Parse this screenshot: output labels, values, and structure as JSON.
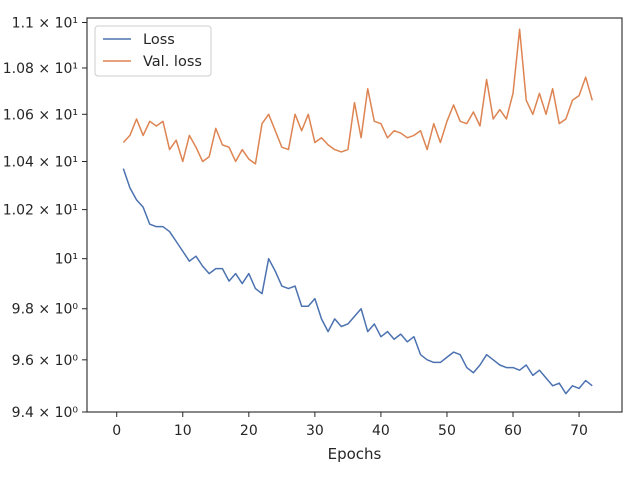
{
  "chart_data": {
    "type": "line",
    "title": "",
    "xlabel": "Epochs",
    "ylabel": "",
    "xlim": [
      -4.5,
      76.5
    ],
    "ylim": [
      9.4,
      11.02
    ],
    "yscale": "log",
    "grid": false,
    "legend_position": "top-left",
    "x_ticks": [
      {
        "value": 0,
        "label": "0"
      },
      {
        "value": 10,
        "label": "10"
      },
      {
        "value": 20,
        "label": "20"
      },
      {
        "value": 30,
        "label": "30"
      },
      {
        "value": 40,
        "label": "40"
      },
      {
        "value": 50,
        "label": "50"
      },
      {
        "value": 60,
        "label": "60"
      },
      {
        "value": 70,
        "label": "70"
      }
    ],
    "y_ticks": [
      {
        "value": 9.4,
        "label": "9.4 × 10⁰"
      },
      {
        "value": 9.6,
        "label": "9.6 × 10⁰"
      },
      {
        "value": 9.8,
        "label": "9.8 × 10⁰"
      },
      {
        "value": 10.0,
        "label": "10¹"
      },
      {
        "value": 10.2,
        "label": "1.02 × 10¹"
      },
      {
        "value": 10.4,
        "label": "1.04 × 10¹"
      },
      {
        "value": 10.6,
        "label": "1.06 × 10¹"
      },
      {
        "value": 10.8,
        "label": "1.08 × 10¹"
      },
      {
        "value": 11.0,
        "label": "1.1 × 10¹"
      }
    ],
    "x": [
      1,
      2,
      3,
      4,
      5,
      6,
      7,
      8,
      9,
      10,
      11,
      12,
      13,
      14,
      15,
      16,
      17,
      18,
      19,
      20,
      21,
      22,
      23,
      24,
      25,
      26,
      27,
      28,
      29,
      30,
      31,
      32,
      33,
      34,
      35,
      36,
      37,
      38,
      39,
      40,
      41,
      42,
      43,
      44,
      45,
      46,
      47,
      48,
      49,
      50,
      51,
      52,
      53,
      54,
      55,
      56,
      57,
      58,
      59,
      60,
      61,
      62,
      63,
      64,
      65,
      66,
      67,
      68,
      69,
      70,
      71,
      72
    ],
    "series": [
      {
        "name": "Loss",
        "color": "#4c72b0",
        "values": [
          10.37,
          10.29,
          10.24,
          10.21,
          10.14,
          10.13,
          10.13,
          10.11,
          10.07,
          10.03,
          9.99,
          10.01,
          9.97,
          9.94,
          9.96,
          9.96,
          9.91,
          9.94,
          9.9,
          9.94,
          9.88,
          9.86,
          10.0,
          9.95,
          9.89,
          9.88,
          9.89,
          9.81,
          9.81,
          9.84,
          9.76,
          9.71,
          9.76,
          9.73,
          9.74,
          9.77,
          9.8,
          9.71,
          9.74,
          9.69,
          9.71,
          9.68,
          9.7,
          9.67,
          9.69,
          9.62,
          9.6,
          9.59,
          9.59,
          9.61,
          9.63,
          9.62,
          9.57,
          9.55,
          9.58,
          9.62,
          9.6,
          9.58,
          9.57,
          9.57,
          9.56,
          9.58,
          9.54,
          9.56,
          9.53,
          9.5,
          9.51,
          9.47,
          9.5,
          9.49,
          9.52,
          9.5
        ]
      },
      {
        "name": "Val. loss",
        "color": "#dd8452",
        "values": [
          10.48,
          10.51,
          10.58,
          10.51,
          10.57,
          10.55,
          10.57,
          10.45,
          10.49,
          10.4,
          10.51,
          10.46,
          10.4,
          10.42,
          10.54,
          10.47,
          10.46,
          10.4,
          10.45,
          10.41,
          10.39,
          10.56,
          10.6,
          10.53,
          10.46,
          10.45,
          10.6,
          10.53,
          10.6,
          10.48,
          10.5,
          10.47,
          10.45,
          10.44,
          10.45,
          10.65,
          10.5,
          10.71,
          10.57,
          10.56,
          10.5,
          10.53,
          10.52,
          10.5,
          10.51,
          10.53,
          10.45,
          10.56,
          10.48,
          10.57,
          10.64,
          10.57,
          10.56,
          10.61,
          10.55,
          10.75,
          10.58,
          10.62,
          10.58,
          10.69,
          10.97,
          10.66,
          10.6,
          10.69,
          10.6,
          10.71,
          10.56,
          10.58,
          10.66,
          10.68,
          10.76,
          10.66
        ]
      }
    ]
  }
}
